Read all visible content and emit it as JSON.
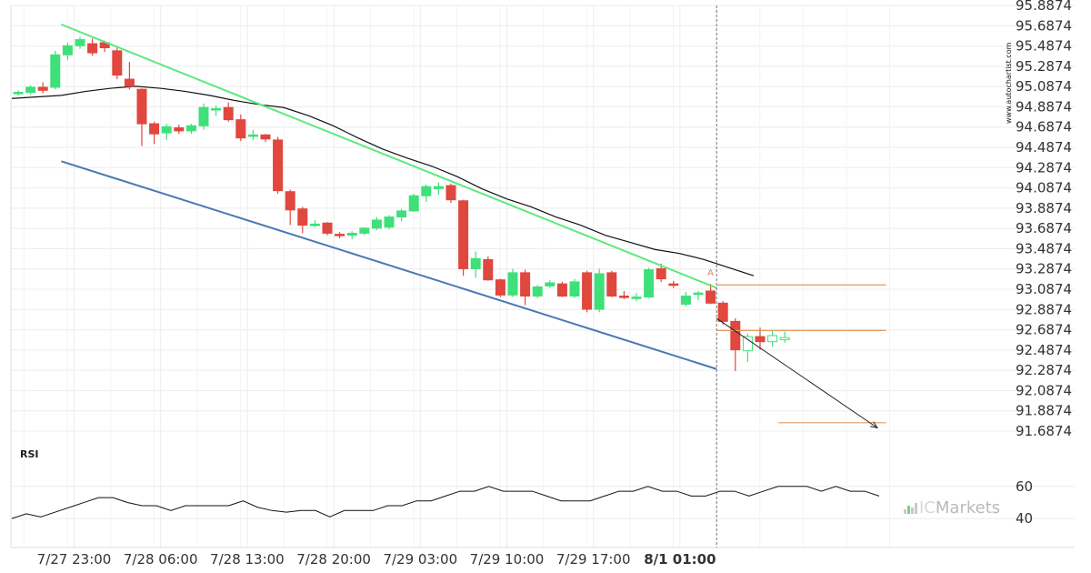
{
  "watermark": "www.autochartist.com",
  "brand": {
    "prefix": "IC",
    "suffix": "Markets"
  },
  "chart_data": {
    "type": "candlestick",
    "price_axis": {
      "ticks": [
        "95.8874",
        "95.6874",
        "95.4874",
        "95.2874",
        "95.0874",
        "94.8874",
        "94.6874",
        "94.4874",
        "94.2874",
        "94.0874",
        "93.8874",
        "93.6874",
        "93.4874",
        "93.2874",
        "93.0874",
        "92.8874",
        "92.6874",
        "92.4874",
        "92.2874",
        "92.0874",
        "91.8874",
        "91.6874"
      ],
      "ylim": [
        91.6874,
        95.8874
      ]
    },
    "time_axis": {
      "ticks": [
        "7/27 23:00",
        "7/28 06:00",
        "7/28 13:00",
        "7/28 20:00",
        "7/29 03:00",
        "7/29 10:00",
        "7/29 17:00",
        "8/1 01:00"
      ],
      "tick_index": [
        5,
        12,
        19,
        26,
        33,
        40,
        47,
        54
      ],
      "bold_index": 7
    },
    "candles": [
      {
        "o": 95.03,
        "h": 95.05,
        "l": 95.0,
        "c": 95.03
      },
      {
        "o": 95.03,
        "h": 95.1,
        "l": 95.01,
        "c": 95.08
      },
      {
        "o": 95.08,
        "h": 95.13,
        "l": 95.02,
        "c": 95.05
      },
      {
        "o": 95.08,
        "h": 95.44,
        "l": 95.06,
        "c": 95.4
      },
      {
        "o": 95.4,
        "h": 95.52,
        "l": 95.35,
        "c": 95.49
      },
      {
        "o": 95.49,
        "h": 95.58,
        "l": 95.46,
        "c": 95.55
      },
      {
        "o": 95.51,
        "h": 95.56,
        "l": 95.39,
        "c": 95.42
      },
      {
        "o": 95.52,
        "h": 95.54,
        "l": 95.43,
        "c": 95.47
      },
      {
        "o": 95.44,
        "h": 95.47,
        "l": 95.16,
        "c": 95.2
      },
      {
        "o": 95.16,
        "h": 95.33,
        "l": 95.06,
        "c": 95.09
      },
      {
        "o": 95.06,
        "h": 95.07,
        "l": 94.5,
        "c": 94.72
      },
      {
        "o": 94.72,
        "h": 94.74,
        "l": 94.52,
        "c": 94.62
      },
      {
        "o": 94.63,
        "h": 94.72,
        "l": 94.56,
        "c": 94.69
      },
      {
        "o": 94.68,
        "h": 94.71,
        "l": 94.62,
        "c": 94.65
      },
      {
        "o": 94.65,
        "h": 94.72,
        "l": 94.62,
        "c": 94.7
      },
      {
        "o": 94.7,
        "h": 94.92,
        "l": 94.66,
        "c": 94.88
      },
      {
        "o": 94.86,
        "h": 94.9,
        "l": 94.8,
        "c": 94.87
      },
      {
        "o": 94.88,
        "h": 94.93,
        "l": 94.74,
        "c": 94.76
      },
      {
        "o": 94.76,
        "h": 94.81,
        "l": 94.55,
        "c": 94.58
      },
      {
        "o": 94.6,
        "h": 94.66,
        "l": 94.56,
        "c": 94.61
      },
      {
        "o": 94.61,
        "h": 94.62,
        "l": 94.54,
        "c": 94.57
      },
      {
        "o": 94.56,
        "h": 94.59,
        "l": 94.03,
        "c": 94.06
      },
      {
        "o": 94.05,
        "h": 94.07,
        "l": 93.72,
        "c": 93.87
      },
      {
        "o": 93.88,
        "h": 93.9,
        "l": 93.64,
        "c": 93.72
      },
      {
        "o": 93.72,
        "h": 93.77,
        "l": 93.7,
        "c": 93.73
      },
      {
        "o": 93.74,
        "h": 93.75,
        "l": 93.62,
        "c": 93.64
      },
      {
        "o": 93.63,
        "h": 93.65,
        "l": 93.59,
        "c": 93.62
      },
      {
        "o": 93.62,
        "h": 93.66,
        "l": 93.58,
        "c": 93.64
      },
      {
        "o": 93.64,
        "h": 93.7,
        "l": 93.62,
        "c": 93.69
      },
      {
        "o": 93.69,
        "h": 93.8,
        "l": 93.67,
        "c": 93.77
      },
      {
        "o": 93.7,
        "h": 93.82,
        "l": 93.68,
        "c": 93.8
      },
      {
        "o": 93.8,
        "h": 93.88,
        "l": 93.76,
        "c": 93.86
      },
      {
        "o": 93.86,
        "h": 94.03,
        "l": 93.85,
        "c": 94.01
      },
      {
        "o": 94.01,
        "h": 94.12,
        "l": 93.95,
        "c": 94.1
      },
      {
        "o": 94.08,
        "h": 94.14,
        "l": 94.02,
        "c": 94.1
      },
      {
        "o": 94.11,
        "h": 94.13,
        "l": 93.94,
        "c": 93.97
      },
      {
        "o": 93.96,
        "h": 93.97,
        "l": 93.22,
        "c": 93.29
      },
      {
        "o": 93.29,
        "h": 93.46,
        "l": 93.2,
        "c": 93.39
      },
      {
        "o": 93.38,
        "h": 93.41,
        "l": 93.17,
        "c": 93.18
      },
      {
        "o": 93.18,
        "h": 93.19,
        "l": 93.01,
        "c": 93.03
      },
      {
        "o": 93.03,
        "h": 93.29,
        "l": 93.01,
        "c": 93.25
      },
      {
        "o": 93.25,
        "h": 93.28,
        "l": 92.93,
        "c": 93.02
      },
      {
        "o": 93.02,
        "h": 93.13,
        "l": 93.0,
        "c": 93.11
      },
      {
        "o": 93.12,
        "h": 93.18,
        "l": 93.1,
        "c": 93.15
      },
      {
        "o": 93.14,
        "h": 93.16,
        "l": 93.01,
        "c": 93.02
      },
      {
        "o": 93.02,
        "h": 93.19,
        "l": 93.0,
        "c": 93.16
      },
      {
        "o": 93.25,
        "h": 93.27,
        "l": 92.86,
        "c": 92.89
      },
      {
        "o": 92.89,
        "h": 93.29,
        "l": 92.86,
        "c": 93.24
      },
      {
        "o": 93.25,
        "h": 93.27,
        "l": 93.01,
        "c": 93.02
      },
      {
        "o": 93.02,
        "h": 93.07,
        "l": 92.99,
        "c": 93.01
      },
      {
        "o": 93.0,
        "h": 93.05,
        "l": 92.97,
        "c": 93.01
      },
      {
        "o": 93.01,
        "h": 93.3,
        "l": 93.0,
        "c": 93.28
      },
      {
        "o": 93.29,
        "h": 93.34,
        "l": 93.16,
        "c": 93.19
      },
      {
        "o": 93.14,
        "h": 93.17,
        "l": 93.1,
        "c": 93.13
      },
      {
        "o": 92.94,
        "h": 93.06,
        "l": 92.92,
        "c": 93.02
      },
      {
        "o": 93.04,
        "h": 93.07,
        "l": 92.98,
        "c": 93.05
      },
      {
        "o": 93.07,
        "h": 93.14,
        "l": 92.94,
        "c": 92.95
      },
      {
        "o": 92.95,
        "h": 92.97,
        "l": 92.74,
        "c": 92.77
      },
      {
        "o": 92.77,
        "h": 92.8,
        "l": 92.28,
        "c": 92.49
      },
      {
        "o": 92.48,
        "h": 92.65,
        "l": 92.37,
        "c": 92.62
      },
      {
        "o": 92.62,
        "h": 92.71,
        "l": 92.49,
        "c": 92.57
      },
      {
        "o": 92.57,
        "h": 92.68,
        "l": 92.52,
        "c": 92.63
      },
      {
        "o": 92.59,
        "h": 92.67,
        "l": 92.56,
        "c": 92.61
      }
    ],
    "moving_average": [
      [
        0,
        94.97
      ],
      [
        4,
        95.0
      ],
      [
        6,
        95.04
      ],
      [
        8,
        95.07
      ],
      [
        10,
        95.09
      ],
      [
        12,
        95.07
      ],
      [
        14,
        95.04
      ],
      [
        16,
        95.0
      ],
      [
        18,
        94.95
      ],
      [
        20,
        94.91
      ],
      [
        22,
        94.88
      ],
      [
        24,
        94.8
      ],
      [
        26,
        94.7
      ],
      [
        28,
        94.58
      ],
      [
        30,
        94.47
      ],
      [
        32,
        94.38
      ],
      [
        34,
        94.3
      ],
      [
        36,
        94.2
      ],
      [
        38,
        94.08
      ],
      [
        40,
        93.98
      ],
      [
        42,
        93.9
      ],
      [
        44,
        93.8
      ],
      [
        46,
        93.72
      ],
      [
        48,
        93.62
      ],
      [
        50,
        93.55
      ],
      [
        52,
        93.48
      ],
      [
        54,
        93.44
      ],
      [
        56,
        93.38
      ],
      [
        58,
        93.3
      ],
      [
        60,
        93.22
      ]
    ],
    "pattern": {
      "upper_line": [
        [
          4,
          95.7
        ],
        [
          57,
          93.1
        ]
      ],
      "lower_line": [
        [
          4,
          94.35
        ],
        [
          57,
          92.3
        ]
      ],
      "projection": [
        [
          57,
          92.8
        ],
        [
          70,
          91.72
        ]
      ],
      "level_a": {
        "price": 93.13,
        "from": 57,
        "to": 71
      },
      "level_b": {
        "price": 92.68,
        "from": 57,
        "to": 71
      },
      "level_target": {
        "price": 91.77,
        "from": 62,
        "to": 71
      },
      "marker": "A",
      "marker_at": [
        56,
        93.22
      ],
      "divider_index": 57
    },
    "rsi": {
      "label": "RSI",
      "ticks": [
        "60",
        "40"
      ],
      "ylim": [
        22,
        74
      ],
      "values": [
        [
          0,
          40
        ],
        [
          2,
          43
        ],
        [
          4,
          41
        ],
        [
          6,
          44
        ],
        [
          8,
          47
        ],
        [
          10,
          50
        ],
        [
          12,
          53
        ],
        [
          14,
          53
        ],
        [
          16,
          50
        ],
        [
          18,
          48
        ],
        [
          20,
          48
        ],
        [
          22,
          45
        ],
        [
          24,
          48
        ],
        [
          26,
          48
        ],
        [
          28,
          48
        ],
        [
          30,
          48
        ],
        [
          32,
          51
        ],
        [
          34,
          47
        ],
        [
          36,
          45
        ],
        [
          38,
          44
        ],
        [
          40,
          45
        ],
        [
          42,
          45
        ],
        [
          44,
          41
        ],
        [
          46,
          45
        ],
        [
          48,
          45
        ],
        [
          50,
          45
        ],
        [
          52,
          48
        ],
        [
          54,
          48
        ],
        [
          56,
          51
        ],
        [
          58,
          51
        ],
        [
          60,
          54
        ],
        [
          62,
          57
        ],
        [
          64,
          57
        ],
        [
          66,
          60
        ],
        [
          68,
          57
        ],
        [
          70,
          57
        ],
        [
          72,
          57
        ],
        [
          74,
          54
        ],
        [
          76,
          51
        ],
        [
          78,
          51
        ],
        [
          80,
          51
        ],
        [
          82,
          54
        ],
        [
          84,
          57
        ],
        [
          86,
          57
        ],
        [
          88,
          60
        ],
        [
          90,
          57
        ],
        [
          92,
          57
        ],
        [
          94,
          54
        ],
        [
          96,
          54
        ],
        [
          98,
          57
        ],
        [
          100,
          57
        ],
        [
          102,
          54
        ],
        [
          104,
          57
        ],
        [
          106,
          60
        ],
        [
          108,
          60
        ],
        [
          110,
          60
        ],
        [
          112,
          57
        ],
        [
          114,
          60
        ],
        [
          116,
          57
        ],
        [
          118,
          57
        ],
        [
          120,
          54
        ]
      ]
    },
    "colors": {
      "up": "#3fe07a",
      "down": "#e0473e",
      "upper_line": "#5ee87e",
      "lower_line": "#4a77b3",
      "moving_average": "#111111",
      "levels": "#e39a63",
      "projection": "#222222",
      "grid": "#ececec"
    }
  }
}
